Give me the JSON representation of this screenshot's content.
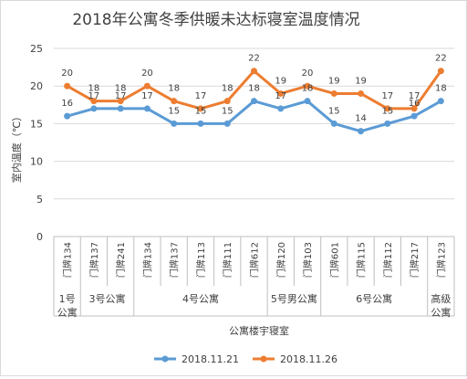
{
  "chart_data": {
    "type": "line",
    "title": "2018年公寓冬季供暖未达标寝室温度情况",
    "ylabel": "室内温度（℃）",
    "xlabel": "公寓楼宇寝室",
    "ylim": [
      0,
      25
    ],
    "yticks": [
      0,
      5,
      10,
      15,
      20,
      25
    ],
    "grid": "horizontal",
    "legend_position": "bottom",
    "categories": [
      "门牌134",
      "门牌137",
      "门牌241",
      "门牌134",
      "门牌137",
      "门牌113",
      "门牌111",
      "门牌612",
      "门牌120",
      "门牌103",
      "门牌601",
      "门牌115",
      "门牌112",
      "门牌217",
      "门牌123"
    ],
    "groups": [
      {
        "label": "1号公寓",
        "start": 0,
        "end": 0
      },
      {
        "label": "3号公寓",
        "start": 1,
        "end": 2
      },
      {
        "label": "4号公寓",
        "start": 3,
        "end": 7
      },
      {
        "label": "5号男公寓",
        "start": 8,
        "end": 9
      },
      {
        "label": "6号公寓",
        "start": 10,
        "end": 13
      },
      {
        "label": "高级公寓",
        "start": 14,
        "end": 14
      }
    ],
    "series": [
      {
        "name": "2018.11.21",
        "color": "#5b9bd5",
        "values": [
          16,
          17,
          17,
          17,
          15,
          15,
          15,
          18,
          17,
          18,
          15,
          14,
          15,
          16,
          18
        ]
      },
      {
        "name": "2018.11.26",
        "color": "#ed7d31",
        "values": [
          20,
          18,
          18,
          20,
          18,
          17,
          18,
          22,
          19,
          20,
          19,
          19,
          17,
          17,
          22
        ]
      }
    ]
  }
}
